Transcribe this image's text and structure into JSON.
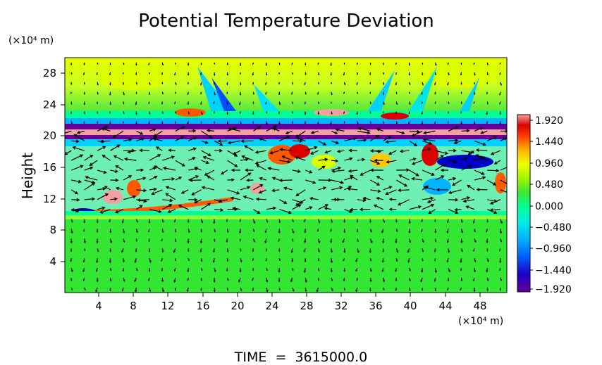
{
  "chart_data": {
    "type": "heatmap",
    "title": "Potential Temperature Deviation",
    "ylabel": "Height",
    "y_unit": "(×10⁴ m)",
    "x_unit": "(×10⁴ m)",
    "x_ticks": [
      4,
      8,
      12,
      16,
      20,
      24,
      28,
      32,
      36,
      40,
      44,
      48
    ],
    "y_ticks": [
      4,
      8,
      12,
      16,
      20,
      24,
      28
    ],
    "xlim": [
      0,
      51.5
    ],
    "ylim": [
      0,
      30
    ],
    "colorbar": {
      "ticks": [
        "1.920",
        "1.440",
        "0.960",
        "0.480",
        "0.000",
        "−0.480",
        "−0.960",
        "−1.440",
        "−1.920"
      ],
      "range": [
        -1.92,
        1.92
      ],
      "colors": [
        "#660099",
        "#0000c8",
        "#0078ff",
        "#00d2ff",
        "#00ff96",
        "#32e632",
        "#8cf500",
        "#dcff00",
        "#ffc800",
        "#ff5a00",
        "#dc0000",
        "#f5a0a0"
      ]
    },
    "overlay": "velocity vector field"
  },
  "footer": {
    "time_label": "TIME  =  3615000.0"
  },
  "colors": {
    "background_field": "#32e632",
    "arrow": "#000000"
  }
}
